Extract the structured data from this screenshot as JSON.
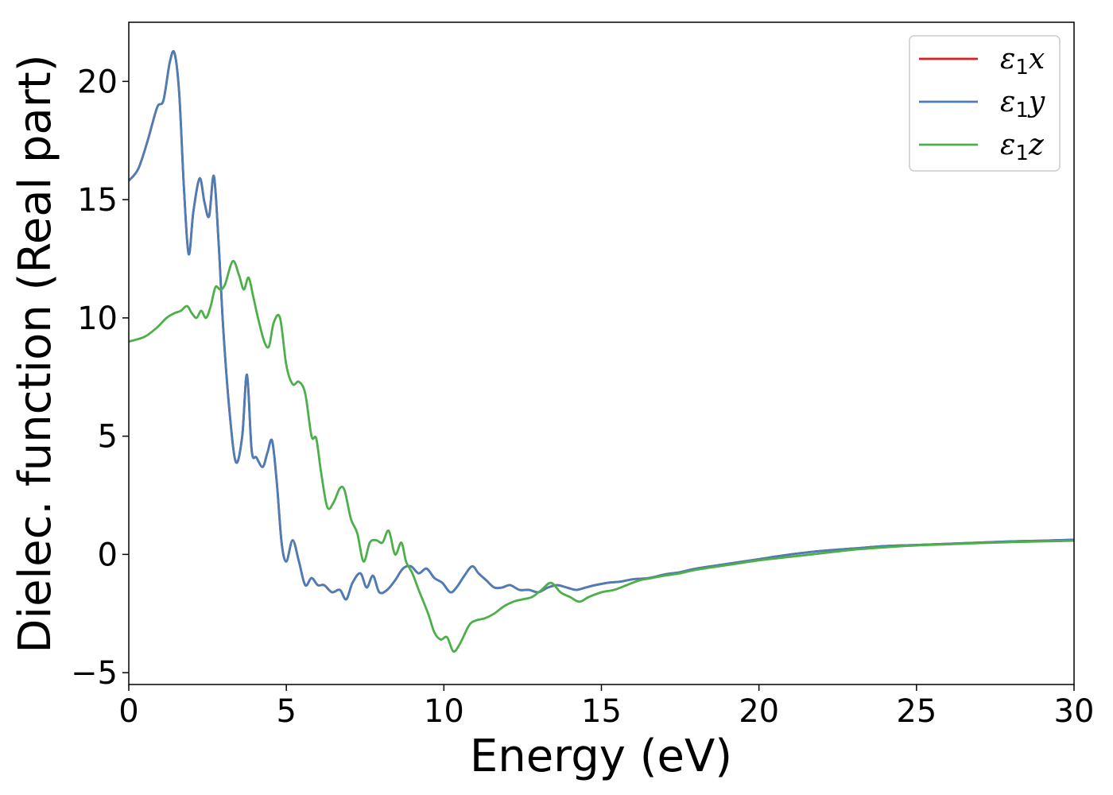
{
  "chart_data": {
    "type": "line",
    "title": "",
    "xlabel": "Energy (eV)",
    "ylabel": "Dielec. function (Real part)",
    "xlim": [
      0,
      30
    ],
    "ylim": [
      -5.5,
      22.5
    ],
    "xticks": [
      0,
      5,
      10,
      15,
      20,
      25,
      30
    ],
    "yticks": [
      -5,
      0,
      5,
      10,
      15,
      20
    ],
    "xtick_labels": [
      "0",
      "5",
      "10",
      "15",
      "20",
      "25",
      "30"
    ],
    "ytick_labels": [
      "−5",
      "0",
      "5",
      "10",
      "15",
      "20"
    ],
    "grid": false,
    "legend_position": "top-right",
    "series": [
      {
        "name": "ε₁x",
        "symbol": "ε",
        "sub": "1",
        "var": "x",
        "color": "#e41a1c",
        "x": [
          0,
          0.3,
          0.6,
          0.9,
          1.1,
          1.3,
          1.45,
          1.6,
          1.75,
          1.9,
          2.05,
          2.25,
          2.4,
          2.55,
          2.7,
          2.85,
          3.0,
          3.2,
          3.4,
          3.6,
          3.75,
          3.9,
          4.05,
          4.25,
          4.4,
          4.55,
          4.7,
          4.85,
          5.0,
          5.2,
          5.4,
          5.6,
          5.8,
          6.0,
          6.2,
          6.45,
          6.7,
          6.9,
          7.1,
          7.35,
          7.55,
          7.75,
          7.95,
          8.2,
          8.45,
          8.7,
          8.95,
          9.2,
          9.45,
          9.7,
          9.95,
          10.2,
          10.4,
          10.65,
          10.9,
          11.1,
          11.35,
          11.6,
          11.85,
          12.1,
          12.4,
          12.7,
          13.0,
          13.3,
          13.6,
          13.9,
          14.2,
          14.5,
          14.8,
          15.2,
          15.6,
          16.0,
          16.5,
          17.0,
          17.5,
          18.0,
          19.0,
          20.0,
          21.0,
          22.0,
          23.0,
          24.0,
          25.0,
          26.0,
          27.0,
          28.0,
          29.0,
          30.0
        ],
        "y": [
          15.8,
          16.3,
          17.5,
          18.9,
          19.2,
          20.8,
          21.2,
          19.5,
          15.5,
          12.7,
          14.5,
          15.9,
          14.9,
          14.3,
          16.0,
          13.2,
          9.5,
          6.0,
          3.9,
          5.0,
          7.6,
          4.4,
          4.1,
          3.7,
          4.3,
          4.8,
          3.0,
          0.5,
          -0.3,
          0.6,
          -0.3,
          -1.3,
          -1.0,
          -1.3,
          -1.3,
          -1.6,
          -1.5,
          -1.9,
          -1.2,
          -0.8,
          -1.4,
          -0.9,
          -1.6,
          -1.5,
          -1.1,
          -0.6,
          -0.5,
          -0.8,
          -0.6,
          -1.0,
          -1.2,
          -1.6,
          -1.4,
          -0.9,
          -0.5,
          -0.8,
          -1.1,
          -1.4,
          -1.4,
          -1.3,
          -1.5,
          -1.5,
          -1.6,
          -1.4,
          -1.3,
          -1.4,
          -1.5,
          -1.4,
          -1.3,
          -1.2,
          -1.15,
          -1.05,
          -1.0,
          -0.85,
          -0.75,
          -0.6,
          -0.4,
          -0.2,
          0.0,
          0.15,
          0.25,
          0.35,
          0.4,
          0.45,
          0.5,
          0.55,
          0.58,
          0.62
        ]
      },
      {
        "name": "ε₁y",
        "symbol": "ε",
        "sub": "1",
        "var": "y",
        "color": "#4a7eb8",
        "x": [
          0,
          0.3,
          0.6,
          0.9,
          1.1,
          1.3,
          1.45,
          1.6,
          1.75,
          1.9,
          2.05,
          2.25,
          2.4,
          2.55,
          2.7,
          2.85,
          3.0,
          3.2,
          3.4,
          3.6,
          3.75,
          3.9,
          4.05,
          4.25,
          4.4,
          4.55,
          4.7,
          4.85,
          5.0,
          5.2,
          5.4,
          5.6,
          5.8,
          6.0,
          6.2,
          6.45,
          6.7,
          6.9,
          7.1,
          7.35,
          7.55,
          7.75,
          7.95,
          8.2,
          8.45,
          8.7,
          8.95,
          9.2,
          9.45,
          9.7,
          9.95,
          10.2,
          10.4,
          10.65,
          10.9,
          11.1,
          11.35,
          11.6,
          11.85,
          12.1,
          12.4,
          12.7,
          13.0,
          13.3,
          13.6,
          13.9,
          14.2,
          14.5,
          14.8,
          15.2,
          15.6,
          16.0,
          16.5,
          17.0,
          17.5,
          18.0,
          19.0,
          20.0,
          21.0,
          22.0,
          23.0,
          24.0,
          25.0,
          26.0,
          27.0,
          28.0,
          29.0,
          30.0
        ],
        "y": [
          15.8,
          16.3,
          17.5,
          18.9,
          19.2,
          20.8,
          21.2,
          19.5,
          15.5,
          12.7,
          14.5,
          15.9,
          14.9,
          14.3,
          16.0,
          13.2,
          9.5,
          6.0,
          3.9,
          5.0,
          7.6,
          4.4,
          4.1,
          3.7,
          4.3,
          4.8,
          3.0,
          0.5,
          -0.3,
          0.6,
          -0.3,
          -1.3,
          -1.0,
          -1.3,
          -1.3,
          -1.6,
          -1.5,
          -1.9,
          -1.2,
          -0.8,
          -1.4,
          -0.9,
          -1.6,
          -1.5,
          -1.1,
          -0.6,
          -0.5,
          -0.8,
          -0.6,
          -1.0,
          -1.2,
          -1.6,
          -1.4,
          -0.9,
          -0.5,
          -0.8,
          -1.1,
          -1.4,
          -1.4,
          -1.3,
          -1.5,
          -1.5,
          -1.6,
          -1.4,
          -1.3,
          -1.4,
          -1.5,
          -1.4,
          -1.3,
          -1.2,
          -1.15,
          -1.05,
          -1.0,
          -0.85,
          -0.75,
          -0.6,
          -0.4,
          -0.2,
          0.0,
          0.15,
          0.25,
          0.35,
          0.4,
          0.45,
          0.5,
          0.55,
          0.58,
          0.62
        ]
      },
      {
        "name": "ε₁z",
        "symbol": "ε",
        "sub": "1",
        "var": "z",
        "color": "#4daf4a",
        "x": [
          0,
          0.5,
          0.9,
          1.2,
          1.45,
          1.65,
          1.85,
          2.0,
          2.15,
          2.3,
          2.45,
          2.6,
          2.75,
          2.9,
          3.05,
          3.3,
          3.5,
          3.65,
          3.8,
          3.95,
          4.1,
          4.3,
          4.45,
          4.6,
          4.8,
          5.0,
          5.2,
          5.4,
          5.6,
          5.8,
          5.95,
          6.1,
          6.3,
          6.5,
          6.7,
          6.85,
          7.05,
          7.25,
          7.45,
          7.65,
          7.85,
          8.05,
          8.25,
          8.45,
          8.65,
          8.8,
          9.0,
          9.2,
          9.5,
          9.7,
          9.9,
          10.1,
          10.3,
          10.5,
          10.8,
          11.0,
          11.3,
          11.6,
          11.9,
          12.2,
          12.5,
          12.8,
          13.1,
          13.4,
          13.7,
          14.0,
          14.3,
          14.6,
          15.0,
          15.4,
          15.8,
          16.2,
          16.6,
          17.0,
          17.5,
          18.0,
          19.0,
          20.0,
          21.0,
          22.0,
          23.0,
          24.0,
          25.0,
          26.0,
          27.0,
          28.0,
          29.0,
          30.0
        ],
        "y": [
          9.0,
          9.2,
          9.6,
          10.0,
          10.2,
          10.3,
          10.5,
          10.2,
          10.0,
          10.3,
          10.0,
          10.5,
          11.3,
          11.2,
          11.4,
          12.4,
          11.8,
          11.2,
          11.7,
          10.9,
          10.0,
          9.0,
          8.8,
          9.8,
          10.0,
          8.0,
          7.2,
          7.3,
          6.8,
          5.0,
          4.9,
          3.5,
          2.0,
          2.2,
          2.8,
          2.7,
          1.5,
          0.9,
          -0.3,
          0.5,
          0.6,
          0.5,
          1.0,
          0.0,
          0.5,
          -0.3,
          -0.8,
          -1.5,
          -2.5,
          -3.3,
          -3.6,
          -3.5,
          -4.1,
          -3.8,
          -3.0,
          -2.8,
          -2.7,
          -2.5,
          -2.2,
          -2.0,
          -1.9,
          -1.8,
          -1.5,
          -1.2,
          -1.6,
          -1.8,
          -2.0,
          -1.8,
          -1.6,
          -1.5,
          -1.3,
          -1.1,
          -1.0,
          -0.9,
          -0.8,
          -0.65,
          -0.45,
          -0.25,
          -0.1,
          0.05,
          0.2,
          0.3,
          0.38,
          0.43,
          0.48,
          0.52,
          0.55,
          0.58
        ]
      }
    ]
  }
}
